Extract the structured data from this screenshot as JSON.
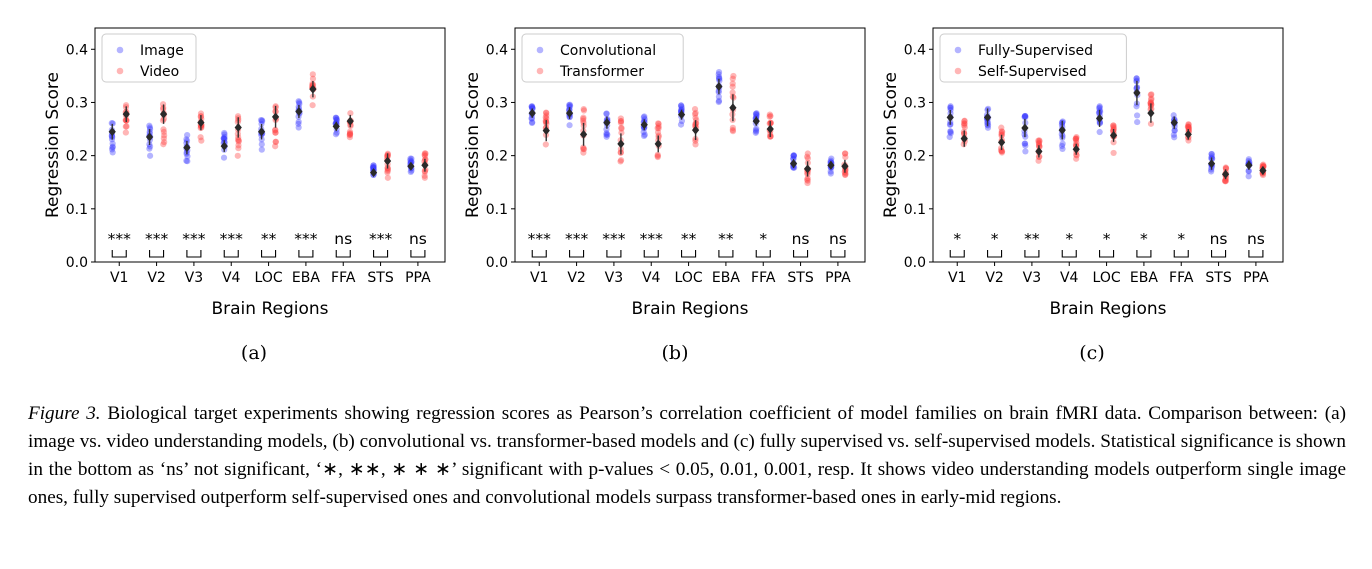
{
  "caption": {
    "label": "Figure 3.",
    "text": "Biological target experiments showing regression scores as Pearson’s correlation coefficient of model families on brain fMRI data. Comparison between: (a) image vs. video understanding models, (b) convolutional vs. transformer-based models and (c) fully supervised vs. self-supervised models. Statistical significance is shown in the bottom as ‘ns’ not significant, ‘∗, ∗∗, ∗ ∗ ∗’ significant with p-values < 0.05, 0.01, 0.001, resp. It shows video understanding models outperform single image ones, fully supervised outperform self-supervised ones and convolutional models surpass transformer-based ones in early-mid regions."
  },
  "chart_data": [
    {
      "type": "scatter",
      "panel_label": "(a)",
      "xlabel": "Brain Regions",
      "ylabel": "Regression Score",
      "categories": [
        "V1",
        "V2",
        "V3",
        "V4",
        "LOC",
        "EBA",
        "FFA",
        "STS",
        "PPA"
      ],
      "ylim": [
        0.0,
        0.44
      ],
      "yticks": [
        "0.0",
        "0.1",
        "0.2",
        "0.3",
        "0.4"
      ],
      "legend_position": "top-left",
      "series": [
        {
          "name": "Image",
          "color": "#3b3bff",
          "means": [
            0.245,
            0.235,
            0.215,
            0.218,
            0.245,
            0.283,
            0.255,
            0.168,
            0.18
          ],
          "lows": [
            0.198,
            0.19,
            0.183,
            0.195,
            0.207,
            0.252,
            0.232,
            0.16,
            0.165
          ],
          "highs": [
            0.265,
            0.258,
            0.24,
            0.245,
            0.273,
            0.308,
            0.272,
            0.182,
            0.195
          ]
        },
        {
          "name": "Video",
          "color": "#ff4040",
          "means": [
            0.278,
            0.278,
            0.262,
            0.253,
            0.273,
            0.325,
            0.265,
            0.19,
            0.182
          ],
          "lows": [
            0.228,
            0.215,
            0.215,
            0.188,
            0.205,
            0.285,
            0.232,
            0.14,
            0.15
          ],
          "highs": [
            0.295,
            0.298,
            0.28,
            0.275,
            0.298,
            0.355,
            0.285,
            0.205,
            0.205
          ]
        }
      ],
      "significance": [
        "***",
        "***",
        "***",
        "***",
        "**",
        "***",
        "ns",
        "***",
        "ns"
      ]
    },
    {
      "type": "scatter",
      "panel_label": "(b)",
      "xlabel": "Brain Regions",
      "ylabel": "Regression Score",
      "categories": [
        "V1",
        "V2",
        "V3",
        "V4",
        "LOC",
        "EBA",
        "FFA",
        "STS",
        "PPA"
      ],
      "ylim": [
        0.0,
        0.44
      ],
      "yticks": [
        "0.0",
        "0.1",
        "0.2",
        "0.3",
        "0.4"
      ],
      "legend_position": "top-left",
      "series": [
        {
          "name": "Convolutional",
          "color": "#3b3bff",
          "means": [
            0.28,
            0.28,
            0.262,
            0.258,
            0.277,
            0.33,
            0.265,
            0.185,
            0.182
          ],
          "lows": [
            0.255,
            0.248,
            0.228,
            0.228,
            0.255,
            0.292,
            0.24,
            0.165,
            0.165
          ],
          "highs": [
            0.295,
            0.298,
            0.28,
            0.275,
            0.298,
            0.358,
            0.28,
            0.203,
            0.198
          ]
        },
        {
          "name": "Transformer",
          "color": "#ff4040",
          "means": [
            0.247,
            0.24,
            0.222,
            0.222,
            0.248,
            0.29,
            0.25,
            0.175,
            0.18
          ],
          "lows": [
            0.198,
            0.19,
            0.18,
            0.19,
            0.205,
            0.235,
            0.215,
            0.14,
            0.15
          ],
          "highs": [
            0.288,
            0.288,
            0.27,
            0.262,
            0.29,
            0.35,
            0.283,
            0.205,
            0.205
          ]
        }
      ],
      "significance": [
        "***",
        "***",
        "***",
        "***",
        "**",
        "**",
        "*",
        "ns",
        "ns"
      ]
    },
    {
      "type": "scatter",
      "panel_label": "(c)",
      "xlabel": "Brain Regions",
      "ylabel": "Regression Score",
      "categories": [
        "V1",
        "V2",
        "V3",
        "V4",
        "LOC",
        "EBA",
        "FFA",
        "STS",
        "PPA"
      ],
      "ylim": [
        0.0,
        0.44
      ],
      "yticks": [
        "0.0",
        "0.1",
        "0.2",
        "0.3",
        "0.4"
      ],
      "legend_position": "top-left",
      "series": [
        {
          "name": "Fully-Supervised",
          "color": "#3b3bff",
          "means": [
            0.272,
            0.272,
            0.252,
            0.248,
            0.27,
            0.318,
            0.262,
            0.185,
            0.182
          ],
          "lows": [
            0.232,
            0.222,
            0.2,
            0.195,
            0.225,
            0.255,
            0.23,
            0.155,
            0.16
          ],
          "highs": [
            0.295,
            0.298,
            0.278,
            0.275,
            0.298,
            0.358,
            0.283,
            0.208,
            0.2
          ]
        },
        {
          "name": "Self-Supervised",
          "color": "#ff4040",
          "means": [
            0.232,
            0.225,
            0.208,
            0.212,
            0.238,
            0.28,
            0.24,
            0.165,
            0.172
          ],
          "lows": [
            0.198,
            0.19,
            0.18,
            0.188,
            0.205,
            0.235,
            0.215,
            0.14,
            0.15
          ],
          "highs": [
            0.268,
            0.255,
            0.232,
            0.235,
            0.26,
            0.318,
            0.26,
            0.182,
            0.185
          ]
        }
      ],
      "significance": [
        "*",
        "*",
        "**",
        "*",
        "*",
        "*",
        "*",
        "ns",
        "ns"
      ]
    }
  ]
}
